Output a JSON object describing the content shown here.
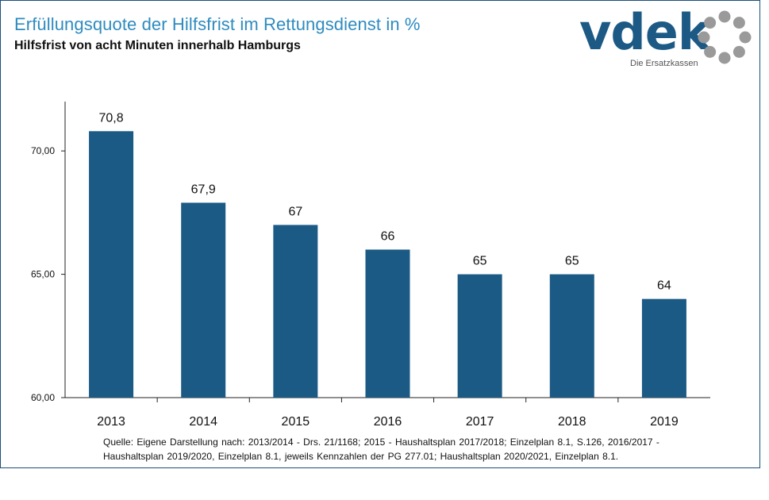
{
  "header": {
    "title": "Erfüllungsquote der Hilfsfrist im Rettungsdienst in %",
    "subtitle": "Hilfsfrist von acht Minuten innerhalb Hamburgs"
  },
  "logo": {
    "word": "vdek",
    "tagline": "Die Ersatzkassen",
    "colors": {
      "word": "#1c5a85",
      "ring": "#9a9a9a"
    }
  },
  "chart_data": {
    "type": "bar",
    "categories": [
      "2013",
      "2014",
      "2015",
      "2016",
      "2017",
      "2018",
      "2019"
    ],
    "values": [
      70.8,
      67.9,
      67,
      66,
      65,
      65,
      64
    ],
    "value_labels": [
      "70,8",
      "67,9",
      "67",
      "66",
      "65",
      "65",
      "64"
    ],
    "ylim": [
      60,
      72
    ],
    "yticks": [
      60,
      65,
      70
    ],
    "ytick_labels": [
      "60,00",
      "65,00",
      "70,00"
    ],
    "title": "Erfüllungsquote der Hilfsfrist im Rettungsdienst in %",
    "xlabel": "",
    "ylabel": "",
    "bar_color": "#1b5a85",
    "grid": false
  },
  "source": {
    "line1": "Quelle: Eigene Darstellung nach: 2013/2014 - Drs. 21/1168; 2015 - Haushaltsplan 2017/2018; Einzelplan 8.1, S.126, 2016/2017 -",
    "line2": "Haushaltsplan 2019/2020, Einzelplan 8.1, jeweils Kennzahlen der PG 277.01; Haushaltsplan 2020/2021, Einzelplan 8.1."
  }
}
